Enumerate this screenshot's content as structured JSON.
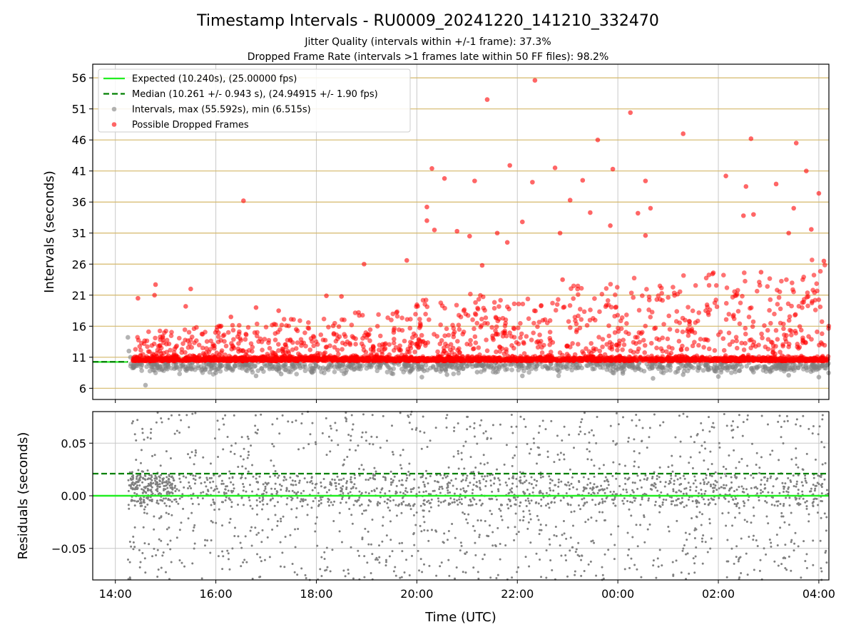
{
  "chart_data": [
    {
      "type": "scatter",
      "title": "Timestamp Intervals - RU0009_20241220_141210_332470",
      "subtitles": [
        "Jitter Quality (intervals within +/-1 frame): 37.3%",
        "Dropped Frame Rate (intervals >1 frames late within 50 FF files): 98.2%"
      ],
      "xlabel": "",
      "ylabel": "Intervals (seconds)",
      "xlim_hours": [
        13.55,
        28.2
      ],
      "ylim": [
        4.2,
        58.2
      ],
      "yticks": [
        6,
        11,
        16,
        21,
        26,
        31,
        36,
        41,
        46,
        51,
        56
      ],
      "hgrid_color": "#d4b86a",
      "vgrid": true,
      "legend_placement": "upper-left",
      "legend": [
        {
          "label": "Expected (10.240s), (25.00000 fps)",
          "kind": "line",
          "color": "#22ee22",
          "dash": false
        },
        {
          "label": "Median (10.261 +/- 0.943 s), (24.94915 +/- 1.90 fps)",
          "kind": "line",
          "color": "#008000",
          "dash": true
        },
        {
          "label": "Intervals, max (55.592s), min (6.515s)",
          "kind": "marker",
          "color": "#808080"
        },
        {
          "label": "Possible Dropped Frames",
          "kind": "marker",
          "color": "#ff0000"
        }
      ],
      "series": [
        {
          "name": "Expected (10.240s), (25.00000 fps)",
          "kind": "hline",
          "y": 10.24,
          "x_end_hours": 14.25,
          "color": "#22ee22"
        },
        {
          "name": "Median (10.261 +/- 0.943 s), (24.94915 +/- 1.90 fps)",
          "kind": "hline",
          "y": 10.261,
          "x_end_hours": 14.25,
          "color": "#008000"
        },
        {
          "name": "Intervals, max (55.592s), min (6.515s)",
          "color": "#808080",
          "points": [
            [
              14.25,
              14.2
            ],
            [
              14.27,
              12.0
            ],
            [
              14.3,
              11.0
            ],
            [
              14.6,
              6.5
            ],
            [
              14.9,
              9.5
            ],
            [
              15.4,
              9.0
            ],
            [
              16.0,
              8.5
            ],
            [
              16.8,
              8.0
            ],
            [
              17.3,
              8.3
            ],
            [
              17.9,
              8.7
            ],
            [
              18.6,
              8.9
            ],
            [
              19.5,
              8.4
            ],
            [
              20.1,
              7.8
            ],
            [
              20.6,
              8.2
            ],
            [
              21.2,
              8.6
            ],
            [
              22.1,
              8.0
            ],
            [
              22.8,
              8.9
            ],
            [
              23.5,
              9.1
            ],
            [
              24.1,
              8.4
            ],
            [
              24.7,
              7.6
            ],
            [
              25.3,
              8.2
            ],
            [
              26.0,
              7.9
            ],
            [
              26.7,
              8.6
            ],
            [
              27.4,
              8.1
            ],
            [
              28.0,
              7.8
            ]
          ]
        },
        {
          "name": "Possible Dropped Frames",
          "color": "#ff0000",
          "points": [
            [
              14.45,
              20.5
            ],
            [
              14.8,
              22.7
            ],
            [
              14.78,
              21.0
            ],
            [
              15.5,
              22.0
            ],
            [
              15.4,
              19.2
            ],
            [
              16.3,
              17.5
            ],
            [
              16.55,
              36.2
            ],
            [
              16.8,
              19.0
            ],
            [
              17.25,
              18.5
            ],
            [
              17.6,
              15.5
            ],
            [
              18.2,
              20.9
            ],
            [
              18.5,
              20.8
            ],
            [
              18.95,
              26.0
            ],
            [
              19.8,
              26.6
            ],
            [
              20.2,
              35.2
            ],
            [
              20.3,
              41.4
            ],
            [
              20.55,
              39.8
            ],
            [
              20.2,
              33.0
            ],
            [
              20.35,
              31.5
            ],
            [
              20.8,
              31.3
            ],
            [
              21.05,
              30.5
            ],
            [
              21.15,
              39.4
            ],
            [
              21.4,
              52.5
            ],
            [
              21.6,
              31.0
            ],
            [
              21.8,
              29.5
            ],
            [
              21.85,
              41.9
            ],
            [
              22.1,
              32.8
            ],
            [
              22.3,
              39.2
            ],
            [
              22.35,
              55.6
            ],
            [
              22.75,
              41.5
            ],
            [
              22.85,
              31.0
            ],
            [
              23.05,
              36.3
            ],
            [
              23.3,
              39.5
            ],
            [
              23.45,
              34.3
            ],
            [
              23.6,
              46.0
            ],
            [
              23.85,
              32.2
            ],
            [
              23.9,
              41.3
            ],
            [
              24.25,
              50.4
            ],
            [
              24.4,
              34.2
            ],
            [
              24.55,
              30.6
            ],
            [
              24.55,
              39.4
            ],
            [
              24.65,
              35.0
            ],
            [
              25.3,
              47.0
            ],
            [
              26.15,
              40.2
            ],
            [
              26.5,
              33.8
            ],
            [
              26.65,
              46.2
            ],
            [
              26.55,
              38.5
            ],
            [
              26.7,
              34.0
            ],
            [
              27.15,
              38.9
            ],
            [
              27.55,
              45.5
            ],
            [
              27.5,
              35.0
            ],
            [
              27.4,
              31.0
            ],
            [
              27.75,
              41.0
            ],
            [
              28.0,
              37.4
            ],
            [
              27.85,
              31.6
            ],
            [
              28.1,
              26.5
            ],
            [
              21.3,
              25.8
            ],
            [
              22.9,
              23.5
            ],
            [
              25.9,
              24.6
            ],
            [
              26.85,
              24.7
            ]
          ]
        }
      ]
    },
    {
      "type": "scatter",
      "xlabel": "Time (UTC)",
      "ylabel": "Residuals (seconds)",
      "xlim_hours": [
        13.55,
        28.2
      ],
      "ylim": [
        -0.08,
        0.08
      ],
      "yticks": [
        -0.05,
        0.0,
        0.05
      ],
      "ytick_labels": [
        "−0.05",
        "0.00",
        "0.05"
      ],
      "xticks_hours": [
        14,
        16,
        18,
        20,
        22,
        24,
        26,
        28
      ],
      "xtick_labels": [
        "14:00",
        "16:00",
        "18:00",
        "20:00",
        "22:00",
        "00:00",
        "02:00",
        "04:00"
      ],
      "vgrid": true,
      "series": [
        {
          "name": "Expected (10.240s), (25.00000 fps)",
          "kind": "hline",
          "y": 0.0,
          "color": "#22ee22"
        },
        {
          "name": "Median (10.261 +/- 0.943 s), (24.94915 +/- 1.90 fps)",
          "kind": "hline",
          "y": 0.021,
          "color": "#008000"
        },
        {
          "name": "Residuals",
          "kind": "cloud",
          "x_range_hours": [
            14.25,
            28.2
          ],
          "y_range": [
            -0.08,
            0.08
          ],
          "dense_band": [
            -0.01,
            0.02
          ],
          "color": "#808080"
        }
      ]
    }
  ]
}
